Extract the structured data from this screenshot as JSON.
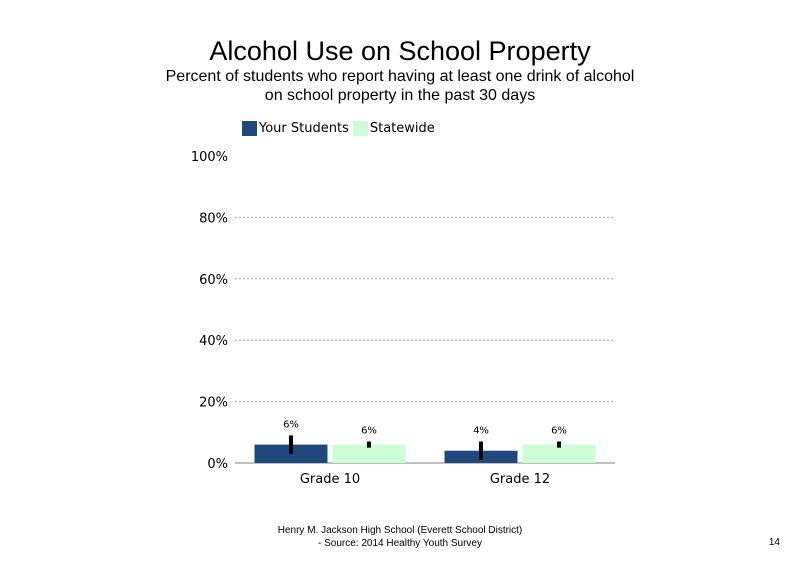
{
  "slide": {
    "title": "Alcohol Use on School  Property",
    "subtitle": "Percent of students  who report having at least one drink of alcohol\non school property in the past 30 days",
    "footer_line1": "Henry M.  Jackson High  School (Everett School District)",
    "footer_line2": "- Source: 2014 Healthy  Youth Survey",
    "page_number": "14"
  },
  "chart_data": {
    "type": "bar",
    "categories": [
      "Grade 10",
      "Grade 12"
    ],
    "series": [
      {
        "name": "Your Students",
        "color": "#1f497d",
        "values": [
          6,
          4
        ],
        "labels": [
          "6%",
          "4%"
        ],
        "error_low": [
          3,
          1
        ],
        "error_high": [
          9,
          7
        ]
      },
      {
        "name": "Statewide",
        "color": "#ccffd5",
        "values": [
          6,
          6
        ],
        "labels": [
          "6%",
          "6%"
        ],
        "error_low": [
          5,
          5
        ],
        "error_high": [
          7,
          7
        ]
      }
    ],
    "ylim": [
      0,
      100
    ],
    "yticks": [
      0,
      20,
      40,
      60,
      80,
      100
    ],
    "ytick_labels": [
      "0%",
      "20%",
      "40%",
      "60%",
      "80%",
      "100%"
    ],
    "grid": true,
    "legend_position": "top-left"
  }
}
